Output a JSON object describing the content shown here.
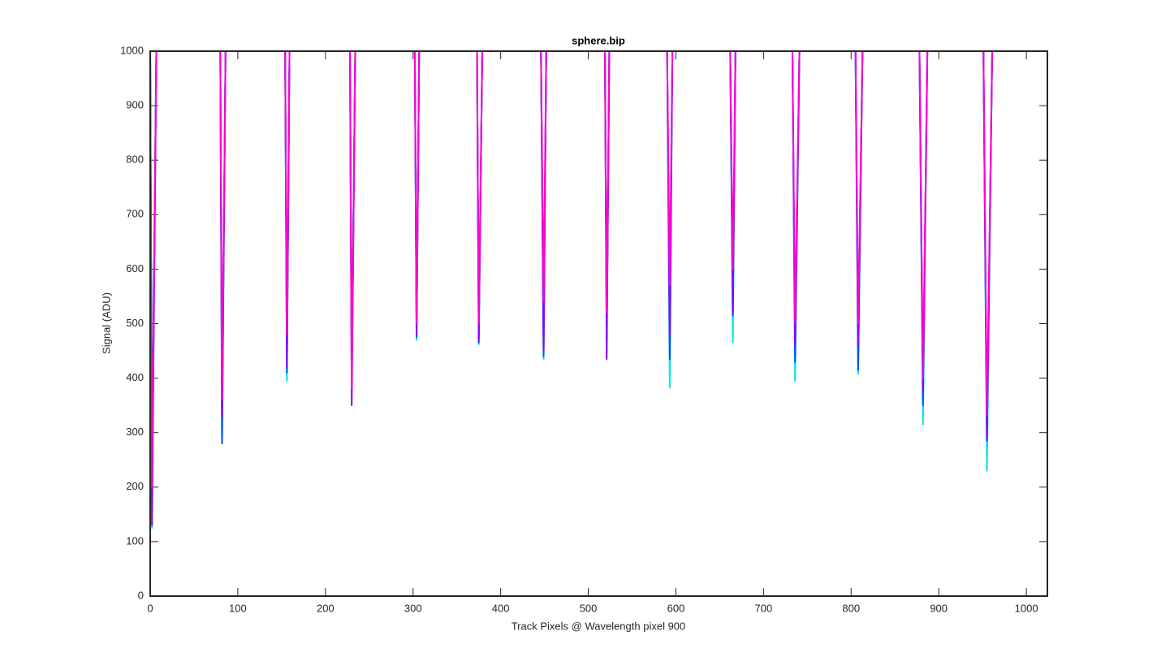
{
  "chart_data": {
    "type": "line",
    "title": "sphere.bip",
    "x_label": "Track Pixels @ Wavelength pixel 900",
    "y_label": "Signal (ADU)",
    "xlim": [
      0,
      1024
    ],
    "ylim": [
      0,
      1000
    ],
    "xticks": [
      0,
      100,
      200,
      300,
      400,
      500,
      600,
      700,
      800,
      900,
      1000
    ],
    "yticks": [
      0,
      100,
      200,
      300,
      400,
      500,
      600,
      700,
      800,
      900,
      1000
    ],
    "x": [
      0,
      2,
      7,
      null,
      80,
      82,
      86,
      null,
      154,
      156,
      159,
      null,
      228,
      230,
      234,
      null,
      302,
      304,
      307,
      null,
      373,
      375,
      379,
      null,
      446,
      449,
      452,
      null,
      519,
      521,
      524,
      null,
      590,
      593,
      596,
      null,
      662,
      665,
      668,
      null,
      733,
      736,
      741,
      null,
      805,
      808,
      813,
      null,
      878,
      882,
      887,
      null,
      951,
      955,
      961
    ],
    "series": [
      {
        "color": "#00e5e5",
        "values": [
          1000,
          125,
          1000,
          null,
          1000,
          280,
          1000,
          null,
          1000,
          395,
          1000,
          null,
          1000,
          420,
          1000,
          null,
          1000,
          470,
          1000,
          null,
          1000,
          462,
          1000,
          null,
          1000,
          435,
          1000,
          null,
          1000,
          480,
          1000,
          null,
          1000,
          383,
          1000,
          null,
          1000,
          465,
          1000,
          null,
          1000,
          395,
          1000,
          null,
          1000,
          408,
          1000,
          null,
          1000,
          315,
          1000,
          null,
          1000,
          230,
          1000
        ]
      },
      {
        "color": "#0050ff",
        "values": [
          1000,
          250,
          1000,
          null,
          1000,
          280,
          1000,
          null,
          1000,
          410,
          1000,
          null,
          1000,
          400,
          1000,
          null,
          1000,
          475,
          1000,
          null,
          1000,
          465,
          1000,
          null,
          1000,
          440,
          1000,
          null,
          1000,
          470,
          1000,
          null,
          1000,
          435,
          1000,
          null,
          1000,
          515,
          1000,
          null,
          1000,
          430,
          1000,
          null,
          1000,
          415,
          1000,
          null,
          1000,
          350,
          1000,
          null,
          1000,
          285,
          1000
        ]
      },
      {
        "color": "#8c00ff",
        "values": [
          1000,
          130,
          1000,
          null,
          1000,
          330,
          1000,
          null,
          1000,
          420,
          1000,
          null,
          1000,
          350,
          1000,
          null,
          1000,
          480,
          1000,
          null,
          1000,
          470,
          1000,
          null,
          1000,
          450,
          1000,
          null,
          1000,
          435,
          1000,
          null,
          1000,
          480,
          1000,
          null,
          1000,
          520,
          1000,
          null,
          1000,
          460,
          1000,
          null,
          1000,
          460,
          1000,
          null,
          1000,
          375,
          1000,
          null,
          1000,
          290,
          1000
        ]
      },
      {
        "color": "#ff00d0",
        "values": [
          1000,
          200,
          1000,
          null,
          1000,
          360,
          1000,
          null,
          1000,
          480,
          1000,
          null,
          1000,
          380,
          1000,
          null,
          1000,
          500,
          1000,
          null,
          1000,
          500,
          1000,
          null,
          1000,
          540,
          1000,
          null,
          1000,
          520,
          1000,
          null,
          1000,
          570,
          1000,
          null,
          1000,
          600,
          1000,
          null,
          1000,
          500,
          1000,
          null,
          1000,
          500,
          1000,
          null,
          1000,
          400,
          1000,
          null,
          1000,
          330,
          1000
        ]
      }
    ]
  }
}
